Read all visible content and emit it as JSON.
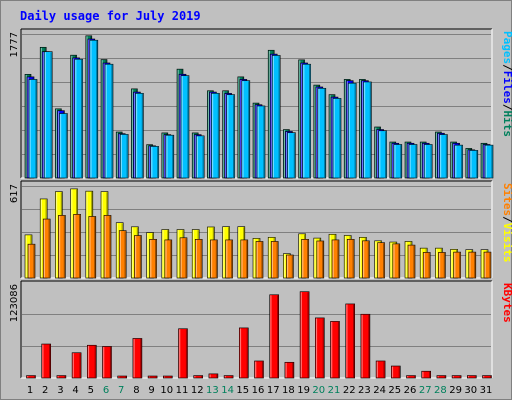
{
  "chart_data": {
    "type": "bar",
    "title": "Daily usage for July 2019",
    "days": [
      {
        "label": "1",
        "weekend": false
      },
      {
        "label": "2",
        "weekend": false
      },
      {
        "label": "3",
        "weekend": false
      },
      {
        "label": "4",
        "weekend": false
      },
      {
        "label": "5",
        "weekend": false
      },
      {
        "label": "6",
        "weekend": true
      },
      {
        "label": "7",
        "weekend": true
      },
      {
        "label": "8",
        "weekend": false
      },
      {
        "label": "9",
        "weekend": false
      },
      {
        "label": "10",
        "weekend": false
      },
      {
        "label": "11",
        "weekend": false
      },
      {
        "label": "12",
        "weekend": false
      },
      {
        "label": "13",
        "weekend": true
      },
      {
        "label": "14",
        "weekend": true
      },
      {
        "label": "15",
        "weekend": false
      },
      {
        "label": "16",
        "weekend": false
      },
      {
        "label": "17",
        "weekend": false
      },
      {
        "label": "18",
        "weekend": false
      },
      {
        "label": "19",
        "weekend": false
      },
      {
        "label": "20",
        "weekend": true
      },
      {
        "label": "21",
        "weekend": true
      },
      {
        "label": "22",
        "weekend": false
      },
      {
        "label": "23",
        "weekend": false
      },
      {
        "label": "24",
        "weekend": false
      },
      {
        "label": "25",
        "weekend": false
      },
      {
        "label": "26",
        "weekend": false
      },
      {
        "label": "27",
        "weekend": true
      },
      {
        "label": "28",
        "weekend": true
      },
      {
        "label": "29",
        "weekend": false
      },
      {
        "label": "30",
        "weekend": false
      },
      {
        "label": "31",
        "weekend": false
      }
    ],
    "panels": [
      {
        "id": "pages-files-hits",
        "max_label": "1777",
        "ymax": 1777,
        "legend": [
          {
            "text": "Pages",
            "color": "#00c0ff"
          },
          {
            "text": "/",
            "color": "#000000"
          },
          {
            "text": "Files",
            "color": "#0000ff"
          },
          {
            "text": "/",
            "color": "#000000"
          },
          {
            "text": "Hits",
            "color": "#00805c"
          }
        ],
        "series": [
          {
            "name": "Hits",
            "color": "#00805c",
            "values": [
              1262,
              1591,
              842,
              1495,
              1731,
              1442,
              560,
              1085,
              406,
              549,
              1325,
              549,
              1062,
              1062,
              1231,
              912,
              1555,
              590,
              1438,
              1131,
              1015,
              1200,
              1200,
              621,
              438,
              438,
              438,
              560,
              438,
              360,
              423
            ]
          },
          {
            "name": "Files",
            "color": "#0000ff",
            "values": [
              1231,
              1538,
              820,
              1462,
              1692,
              1400,
              540,
              1046,
              392,
              528,
              1263,
              528,
              1046,
              1030,
              1200,
              892,
              1508,
              567,
              1400,
              1108,
              985,
              1185,
              1185,
              590,
              423,
              423,
              423,
              545,
              423,
              343,
              408
            ]
          },
          {
            "name": "Pages",
            "color": "#00c0ff",
            "values": [
              1200,
              1538,
              785,
              1446,
              1677,
              1385,
              531,
              1031,
              385,
              521,
              1246,
              513,
              1031,
              1015,
              1185,
              877,
              1492,
              552,
              1385,
              1092,
              969,
              1154,
              1169,
              575,
              408,
              408,
              408,
              529,
              400,
              336,
              400
            ]
          }
        ]
      },
      {
        "id": "sites-visits",
        "max_label": "617",
        "ymax": 617,
        "legend": [
          {
            "text": "Sites",
            "color": "#ff8000"
          },
          {
            "text": "/",
            "color": "#000000"
          },
          {
            "text": "Visits",
            "color": "#ffff00"
          }
        ],
        "series": [
          {
            "name": "Visits",
            "color": "#ffff00",
            "values": [
              283,
              519,
              567,
              585,
              570,
              567,
              363,
              336,
              298,
              318,
              318,
              318,
              335,
              337,
              337,
              260,
              267,
              160,
              290,
              262,
              287,
              279,
              267,
              244,
              236,
              240,
              196,
              196,
              188,
              186,
              186
            ]
          },
          {
            "name": "Sites",
            "color": "#ff8000",
            "values": [
              222,
              387,
              411,
              418,
              404,
              411,
              311,
              279,
              254,
              250,
              264,
              254,
              250,
              250,
              250,
              240,
              240,
              151,
              254,
              243,
              250,
              254,
              244,
              232,
              224,
              216,
              168,
              168,
              170,
              170,
              170
            ]
          }
        ]
      },
      {
        "id": "kbytes",
        "max_label": "123086",
        "ymax": 123086,
        "legend": [
          {
            "text": "KBytes",
            "color": "#ff0000"
          }
        ],
        "series": [
          {
            "name": "KBytes",
            "color": "#ff0000",
            "values": [
              3200,
              44500,
              3200,
              33100,
              42900,
              41300,
              1200,
              51800,
              1200,
              1200,
              64500,
              3200,
              5400,
              3200,
              65600,
              22300,
              109000,
              20600,
              113000,
              78700,
              74100,
              97000,
              83500,
              22300,
              15700,
              3200,
              8900,
              3200,
              3200,
              3200,
              3200
            ]
          }
        ]
      }
    ]
  }
}
